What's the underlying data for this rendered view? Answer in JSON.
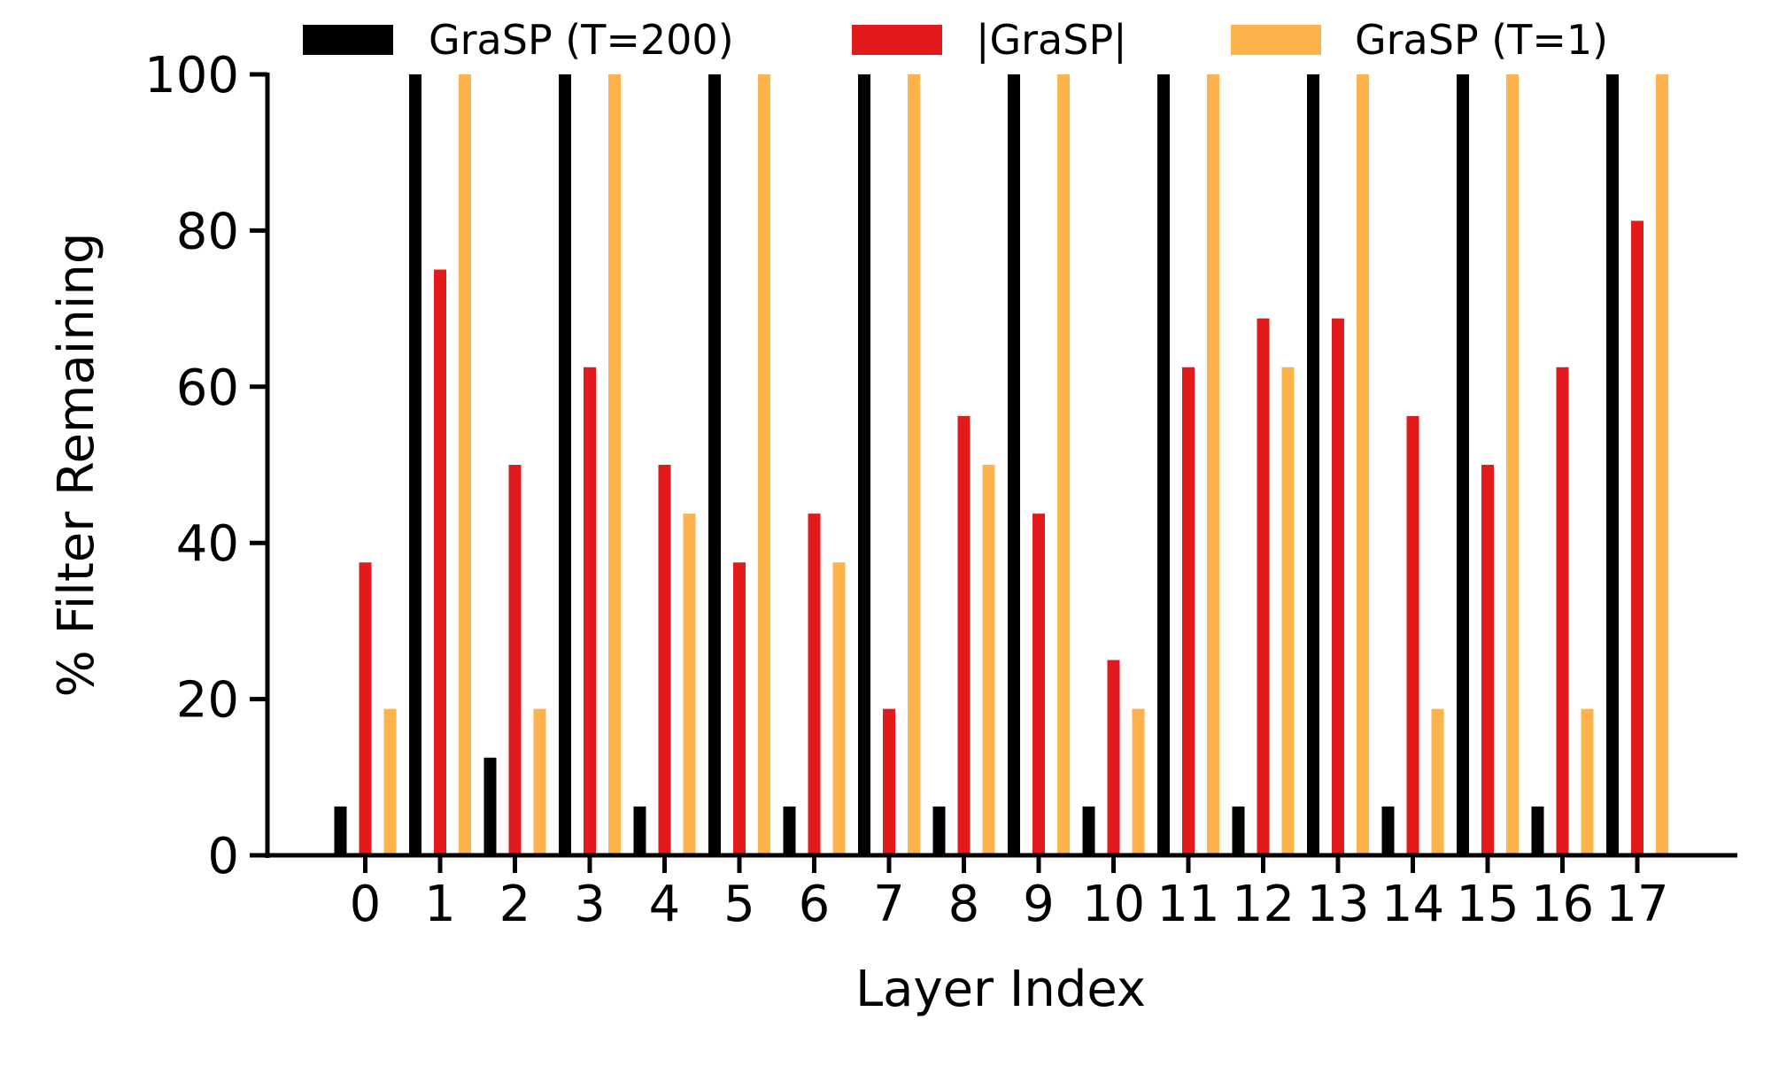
{
  "chart_data": {
    "type": "bar",
    "title": "",
    "xlabel": "Layer Index",
    "ylabel": "% Filter Remaining",
    "ylim": [
      0,
      100
    ],
    "yticks": [
      0,
      20,
      40,
      60,
      80,
      100
    ],
    "categories": [
      "0",
      "1",
      "2",
      "3",
      "4",
      "5",
      "6",
      "7",
      "8",
      "9",
      "10",
      "11",
      "12",
      "13",
      "14",
      "15",
      "16",
      "17"
    ],
    "legend_position": "top",
    "grid": false,
    "series": [
      {
        "name": "GraSP (T=200)",
        "color": "#000000",
        "values": [
          6.25,
          100,
          12.5,
          100,
          6.25,
          100,
          6.25,
          100,
          6.25,
          100,
          6.25,
          100,
          6.25,
          100,
          6.25,
          100,
          6.25,
          100
        ]
      },
      {
        "name": "|GraSP|",
        "color": "#e31a1c",
        "values": [
          37.5,
          75,
          50,
          62.5,
          50,
          37.5,
          43.75,
          18.75,
          56.25,
          43.75,
          25,
          62.5,
          68.75,
          68.75,
          56.25,
          50,
          62.5,
          81.25
        ]
      },
      {
        "name": "GraSP (T=1)",
        "color": "#fdb24c",
        "values": [
          18.75,
          100,
          18.75,
          100,
          43.75,
          100,
          37.5,
          100,
          50,
          100,
          18.75,
          100,
          62.5,
          100,
          18.75,
          100,
          18.75,
          100
        ]
      }
    ]
  }
}
